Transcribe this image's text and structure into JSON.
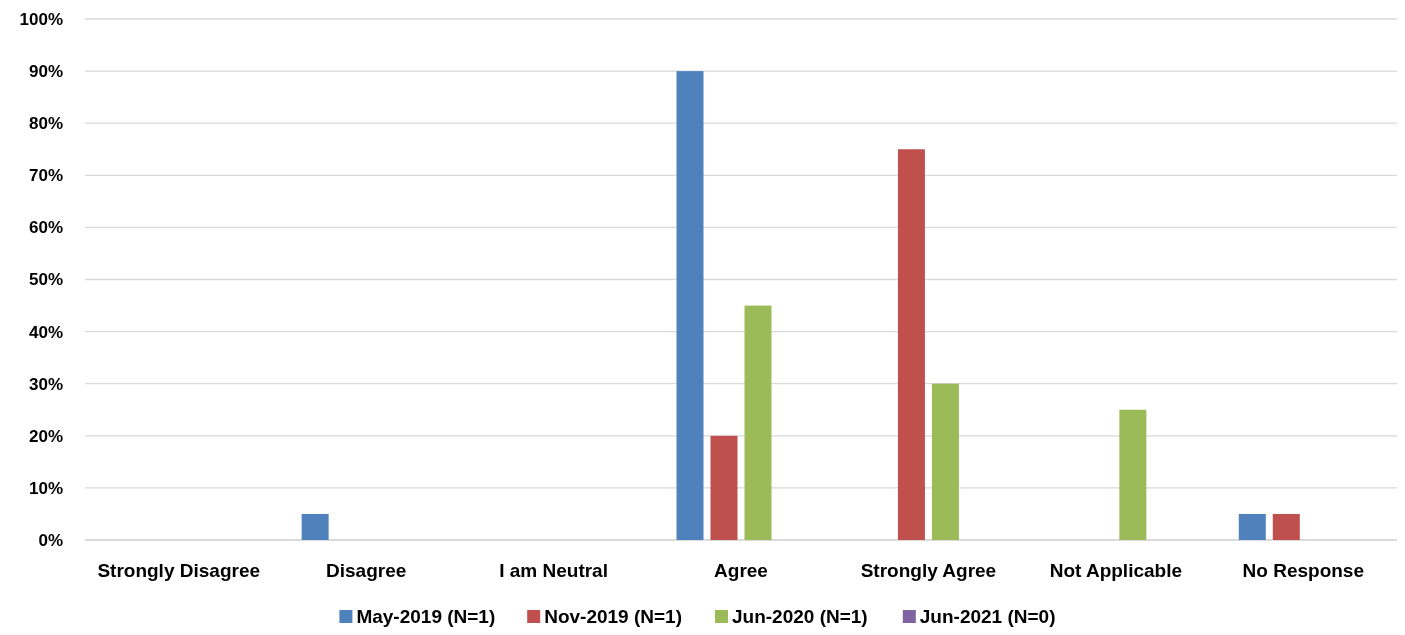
{
  "chart_data": {
    "type": "bar",
    "categories": [
      "Strongly Disagree",
      "Disagree",
      "I am Neutral",
      "Agree",
      "Strongly Agree",
      "Not Applicable",
      "No Response"
    ],
    "series": [
      {
        "name": "May-2019 (N=1)",
        "color": "#4f81bd",
        "values": [
          0,
          5,
          0,
          90,
          0,
          0,
          5
        ]
      },
      {
        "name": "Nov-2019 (N=1)",
        "color": "#c0504d",
        "values": [
          0,
          0,
          0,
          20,
          75,
          0,
          5
        ]
      },
      {
        "name": "Jun-2020 (N=1)",
        "color": "#9bbb59",
        "values": [
          0,
          0,
          0,
          45,
          30,
          25,
          0
        ]
      },
      {
        "name": "Jun-2021 (N=0)",
        "color": "#8064a2",
        "values": [
          0,
          0,
          0,
          0,
          0,
          0,
          0
        ]
      }
    ],
    "ylim": [
      0,
      100
    ],
    "yticks": [
      {
        "value": 0,
        "label": "0%"
      },
      {
        "value": 10,
        "label": "10%"
      },
      {
        "value": 20,
        "label": "20%"
      },
      {
        "value": 30,
        "label": "30%"
      },
      {
        "value": 40,
        "label": "40%"
      },
      {
        "value": 50,
        "label": "50%"
      },
      {
        "value": 60,
        "label": "60%"
      },
      {
        "value": 70,
        "label": "70%"
      },
      {
        "value": 80,
        "label": "80%"
      },
      {
        "value": 90,
        "label": "90%"
      },
      {
        "value": 100,
        "label": "100%"
      }
    ],
    "grid": "y",
    "legend": "bottom"
  }
}
